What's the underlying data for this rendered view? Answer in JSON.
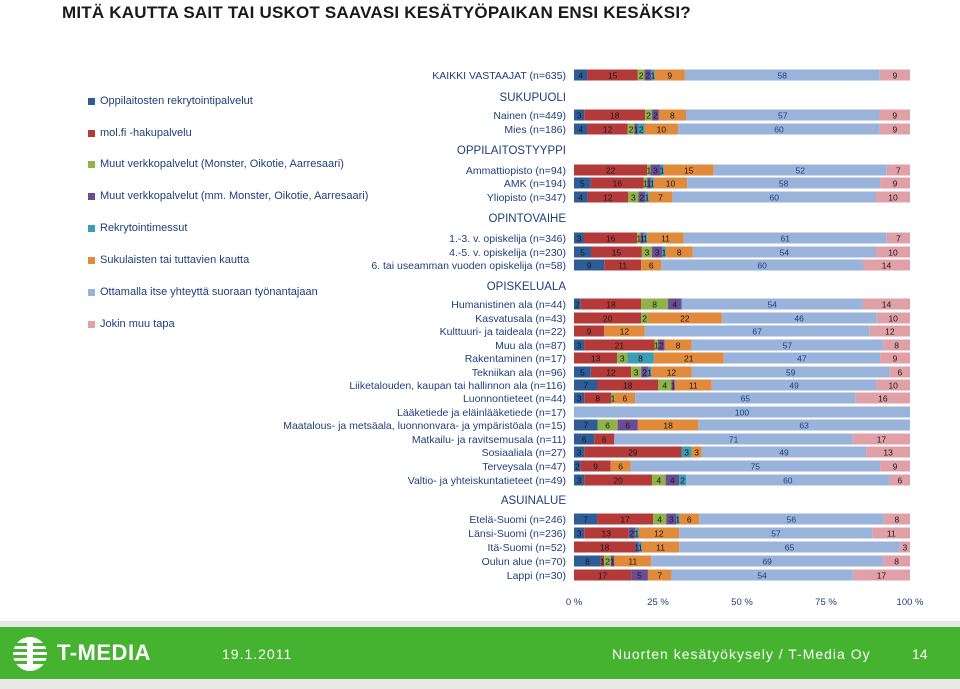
{
  "title": "MITÄ KAUTTA SAIT TAI USKOT SAAVASI KESÄTYÖPAIKAN ENSI KESÄKSI?",
  "legend": [
    {
      "label": "Oppilaitosten rekrytointipalvelut",
      "color": "#2e5c96"
    },
    {
      "label": "mol.fi -hakupalvelu",
      "color": "#b43a3a"
    },
    {
      "label": "Muut verkkopalvelut (Monster, Oikotie, Aarresaari)",
      "color": "#8fb24a"
    },
    {
      "label": "Muut verkkopalvelut (mm. Monster, Oikotie, Aarresaari)",
      "color": "#6a4c93"
    },
    {
      "label": "Rekrytointimessut",
      "color": "#3a9db3"
    },
    {
      "label": "Sukulaisten tai tuttavien kautta",
      "color": "#e08a3c"
    },
    {
      "label": "Ottamalla itse yhteyttä suoraan työnantajaan",
      "color": "#99b3da"
    },
    {
      "label": "Jokin muu tapa",
      "color": "#e0a0a8"
    }
  ],
  "chart_data": {
    "type": "bar",
    "orientation": "horizontal",
    "stacked": true,
    "percent": true,
    "xlim": [
      0,
      100
    ],
    "x_ticks": [
      "0 %",
      "25 %",
      "50 %",
      "75 %",
      "100 %"
    ],
    "series": [
      {
        "name": "Oppilaitosten rekrytointipalvelut",
        "color": "#2e5c96"
      },
      {
        "name": "mol.fi -hakupalvelu",
        "color": "#b43a3a"
      },
      {
        "name": "Muut verkkopalvelut (Monster, Oikotie, Aarresaari)",
        "color": "#8fb24a"
      },
      {
        "name": "Muut verkkopalvelut (mm. Monster, Oikotie, Aarresaari)",
        "color": "#6a4c93"
      },
      {
        "name": "Rekrytointimessut",
        "color": "#3a9db3"
      },
      {
        "name": "Sukulaisten tai tuttavien kautta",
        "color": "#e08a3c"
      },
      {
        "name": "Ottamalla itse yhteyttä suoraan työnantajaan",
        "color": "#99b3da"
      },
      {
        "name": "Jokin muu tapa",
        "color": "#e0a0a8"
      }
    ],
    "rows": [
      {
        "label": "KAIKKI VASTAAJAT (n=635)",
        "values": [
          4,
          15,
          2,
          2,
          1,
          9,
          58,
          9
        ]
      },
      {
        "header": "SUKUPUOLI"
      },
      {
        "label": "Nainen (n=449)",
        "values": [
          3,
          18,
          2,
          2,
          0,
          8,
          57,
          9
        ]
      },
      {
        "label": "Mies (n=186)",
        "values": [
          4,
          12,
          2,
          1,
          2,
          10,
          60,
          9
        ]
      },
      {
        "header": "OPPILAITOSTYYPPI"
      },
      {
        "label": "Ammattiopisto (n=94)",
        "values": [
          0,
          22,
          1,
          3,
          1,
          15,
          52,
          7
        ]
      },
      {
        "label": "AMK (n=194)",
        "values": [
          5,
          16,
          1,
          1,
          1,
          10,
          58,
          9
        ]
      },
      {
        "label": "Yliopisto (n=347)",
        "values": [
          4,
          12,
          3,
          2,
          1,
          7,
          60,
          10
        ]
      },
      {
        "header": "OPINTOVAIHE"
      },
      {
        "label": "1.-3. v. opiskelija (n=346)",
        "values": [
          3,
          16,
          1,
          1,
          1,
          11,
          61,
          7
        ]
      },
      {
        "label": "4.-5. v. opiskelija (n=230)",
        "values": [
          5,
          15,
          3,
          3,
          1,
          8,
          54,
          10
        ]
      },
      {
        "label": "6. tai useamman vuoden opiskelija (n=58)",
        "values": [
          9,
          11,
          0,
          0,
          0,
          6,
          60,
          14
        ]
      },
      {
        "header": "OPISKELUALA"
      },
      {
        "label": "Humanistinen ala (n=44)",
        "values": [
          2,
          18,
          8,
          4,
          0,
          0,
          54,
          14
        ]
      },
      {
        "label": "Kasvatusala (n=43)",
        "values": [
          0,
          20,
          2,
          0,
          0,
          22,
          46,
          10
        ]
      },
      {
        "label": "Kulttuuri- ja taideala (n=22)",
        "values": [
          0,
          9,
          0,
          0,
          0,
          12,
          67,
          12
        ]
      },
      {
        "label": "Muu ala (n=87)",
        "values": [
          3,
          21,
          1,
          2,
          0,
          8,
          57,
          8
        ]
      },
      {
        "label": "Rakentaminen (n=17)",
        "values": [
          0,
          13,
          3,
          0,
          8,
          21,
          47,
          9
        ]
      },
      {
        "label": "Tekniikan ala (n=96)",
        "values": [
          5,
          12,
          3,
          2,
          1,
          12,
          59,
          6
        ]
      },
      {
        "label": "Liiketalouden, kaupan tai hallinnon ala (n=116)",
        "values": [
          7,
          18,
          4,
          1,
          0,
          11,
          49,
          10
        ]
      },
      {
        "label": "Luonnontieteet (n=44)",
        "values": [
          3,
          8,
          1,
          0,
          0,
          6,
          65,
          16
        ]
      },
      {
        "label": "Lääketiede ja eläinlääketiede (n=17)",
        "values": [
          0,
          0,
          0,
          0,
          0,
          0,
          100,
          0
        ]
      },
      {
        "label": "Maatalous- ja metsäala, luonnonvara- ja ympäristöala (n=15)",
        "values": [
          7,
          0,
          6,
          6,
          0,
          18,
          63,
          0
        ]
      },
      {
        "label": "Matkailu- ja ravitsemusala (n=11)",
        "values": [
          6,
          6,
          0,
          0,
          0,
          0,
          71,
          17
        ]
      },
      {
        "label": "Sosiaaliala (n=27)",
        "values": [
          3,
          29,
          0,
          0,
          3,
          3,
          49,
          13
        ]
      },
      {
        "label": "Terveysala (n=47)",
        "values": [
          2,
          9,
          0,
          0,
          0,
          6,
          75,
          9
        ]
      },
      {
        "label": "Valtio- ja yhteiskuntatieteet (n=49)",
        "values": [
          3,
          20,
          4,
          4,
          2,
          0,
          60,
          6
        ]
      },
      {
        "header": "ASUINALUE"
      },
      {
        "label": "Etelä-Suomi (n=246)",
        "values": [
          7,
          17,
          4,
          3,
          1,
          6,
          56,
          8
        ]
      },
      {
        "label": "Länsi-Suomi (n=236)",
        "values": [
          3,
          13,
          0,
          2,
          1,
          12,
          57,
          11
        ]
      },
      {
        "label": "Itä-Suomi (n=52)",
        "values": [
          0,
          18,
          0,
          1,
          1,
          11,
          65,
          3
        ]
      },
      {
        "label": "Oulun alue (n=70)",
        "values": [
          8,
          1,
          2,
          1,
          0,
          11,
          69,
          8
        ]
      },
      {
        "label": "Lappi (n=30)",
        "values": [
          0,
          17,
          0,
          5,
          0,
          7,
          54,
          17
        ]
      }
    ]
  },
  "footer": {
    "logo_text": "T-MEDIA",
    "date": "19.1.2011",
    "source": "Nuorten kesätyökysely / T-Media Oy",
    "page": "14"
  }
}
